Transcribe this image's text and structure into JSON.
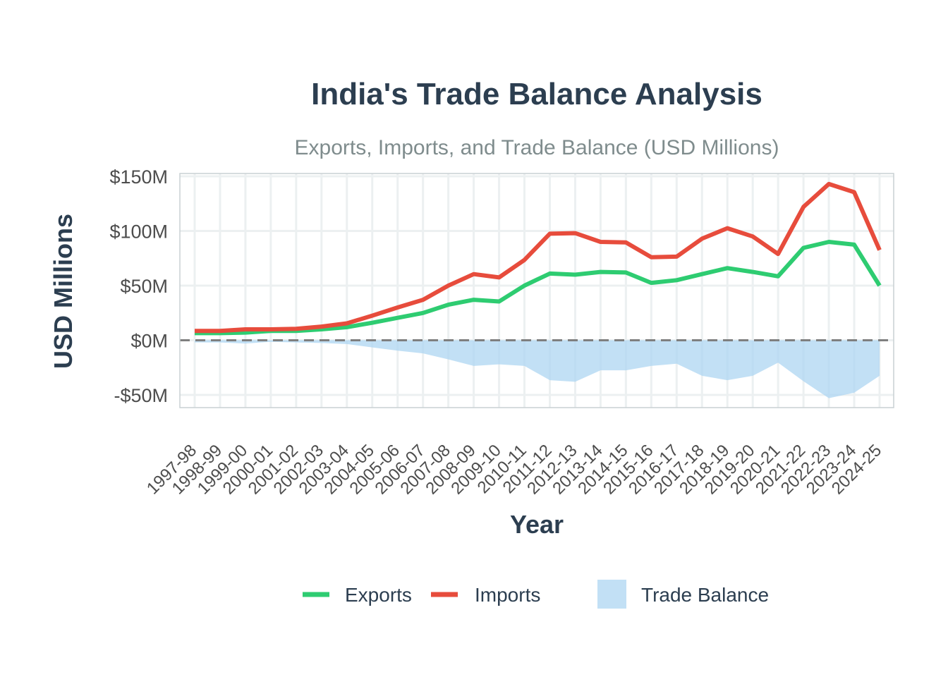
{
  "chart_data": {
    "type": "line",
    "title": "India's Trade Balance Analysis",
    "subtitle": "Exports, Imports, and Trade Balance (USD Millions)",
    "xlabel": "Year",
    "ylabel": "USD Millions",
    "ylim": [
      -62,
      150
    ],
    "yticks": [
      -50,
      0,
      50,
      100,
      150
    ],
    "ytick_labels": [
      "-$50M",
      "$0M",
      "$50M",
      "$100M",
      "$150M"
    ],
    "categories": [
      "1997-98",
      "1998-99",
      "1999-00",
      "2000-01",
      "2001-02",
      "2002-03",
      "2003-04",
      "2004-05",
      "2005-06",
      "2006-07",
      "2007-08",
      "2008-09",
      "2009-10",
      "2010-11",
      "2011-12",
      "2012-13",
      "2013-14",
      "2014-15",
      "2015-16",
      "2016-17",
      "2017-18",
      "2018-19",
      "2019-20",
      "2020-21",
      "2021-22",
      "2022-23",
      "2023-24",
      "2024-25"
    ],
    "series": [
      {
        "name": "Exports",
        "color": "#2ecc71",
        "values": [
          6.5,
          6.5,
          7,
          8.5,
          8.5,
          10,
          12,
          16,
          20.5,
          25,
          32.5,
          37,
          35.5,
          50,
          61,
          60,
          62.5,
          62,
          52.5,
          55,
          60.5,
          66,
          62.5,
          58.5,
          84.5,
          90,
          87.5,
          50
        ]
      },
      {
        "name": "Imports",
        "color": "#e74c3c",
        "values": [
          8.5,
          8.5,
          10,
          10,
          10.5,
          12.5,
          15.5,
          22.5,
          30,
          37,
          50,
          60.5,
          57.5,
          73.5,
          97.5,
          98,
          90,
          89.5,
          76,
          76.5,
          93,
          102.5,
          95,
          79,
          122,
          143,
          135.5,
          82.5
        ]
      },
      {
        "name": "Trade Balance",
        "color": "#aed6f1",
        "values": [
          -2,
          -2,
          -3,
          -1.5,
          -2,
          -2.5,
          -3.5,
          -6.5,
          -9.5,
          -12,
          -17.5,
          -23.5,
          -22,
          -23.5,
          -36.5,
          -38,
          -27.5,
          -27.5,
          -23.5,
          -21.5,
          -32.5,
          -36.5,
          -32.5,
          -20.5,
          -37.5,
          -53,
          -48,
          -32.5
        ]
      }
    ],
    "legend": {
      "position": "bottom",
      "items": [
        "Exports",
        "Imports",
        "Trade Balance"
      ]
    },
    "grid": true,
    "zero_line": "dashed"
  }
}
